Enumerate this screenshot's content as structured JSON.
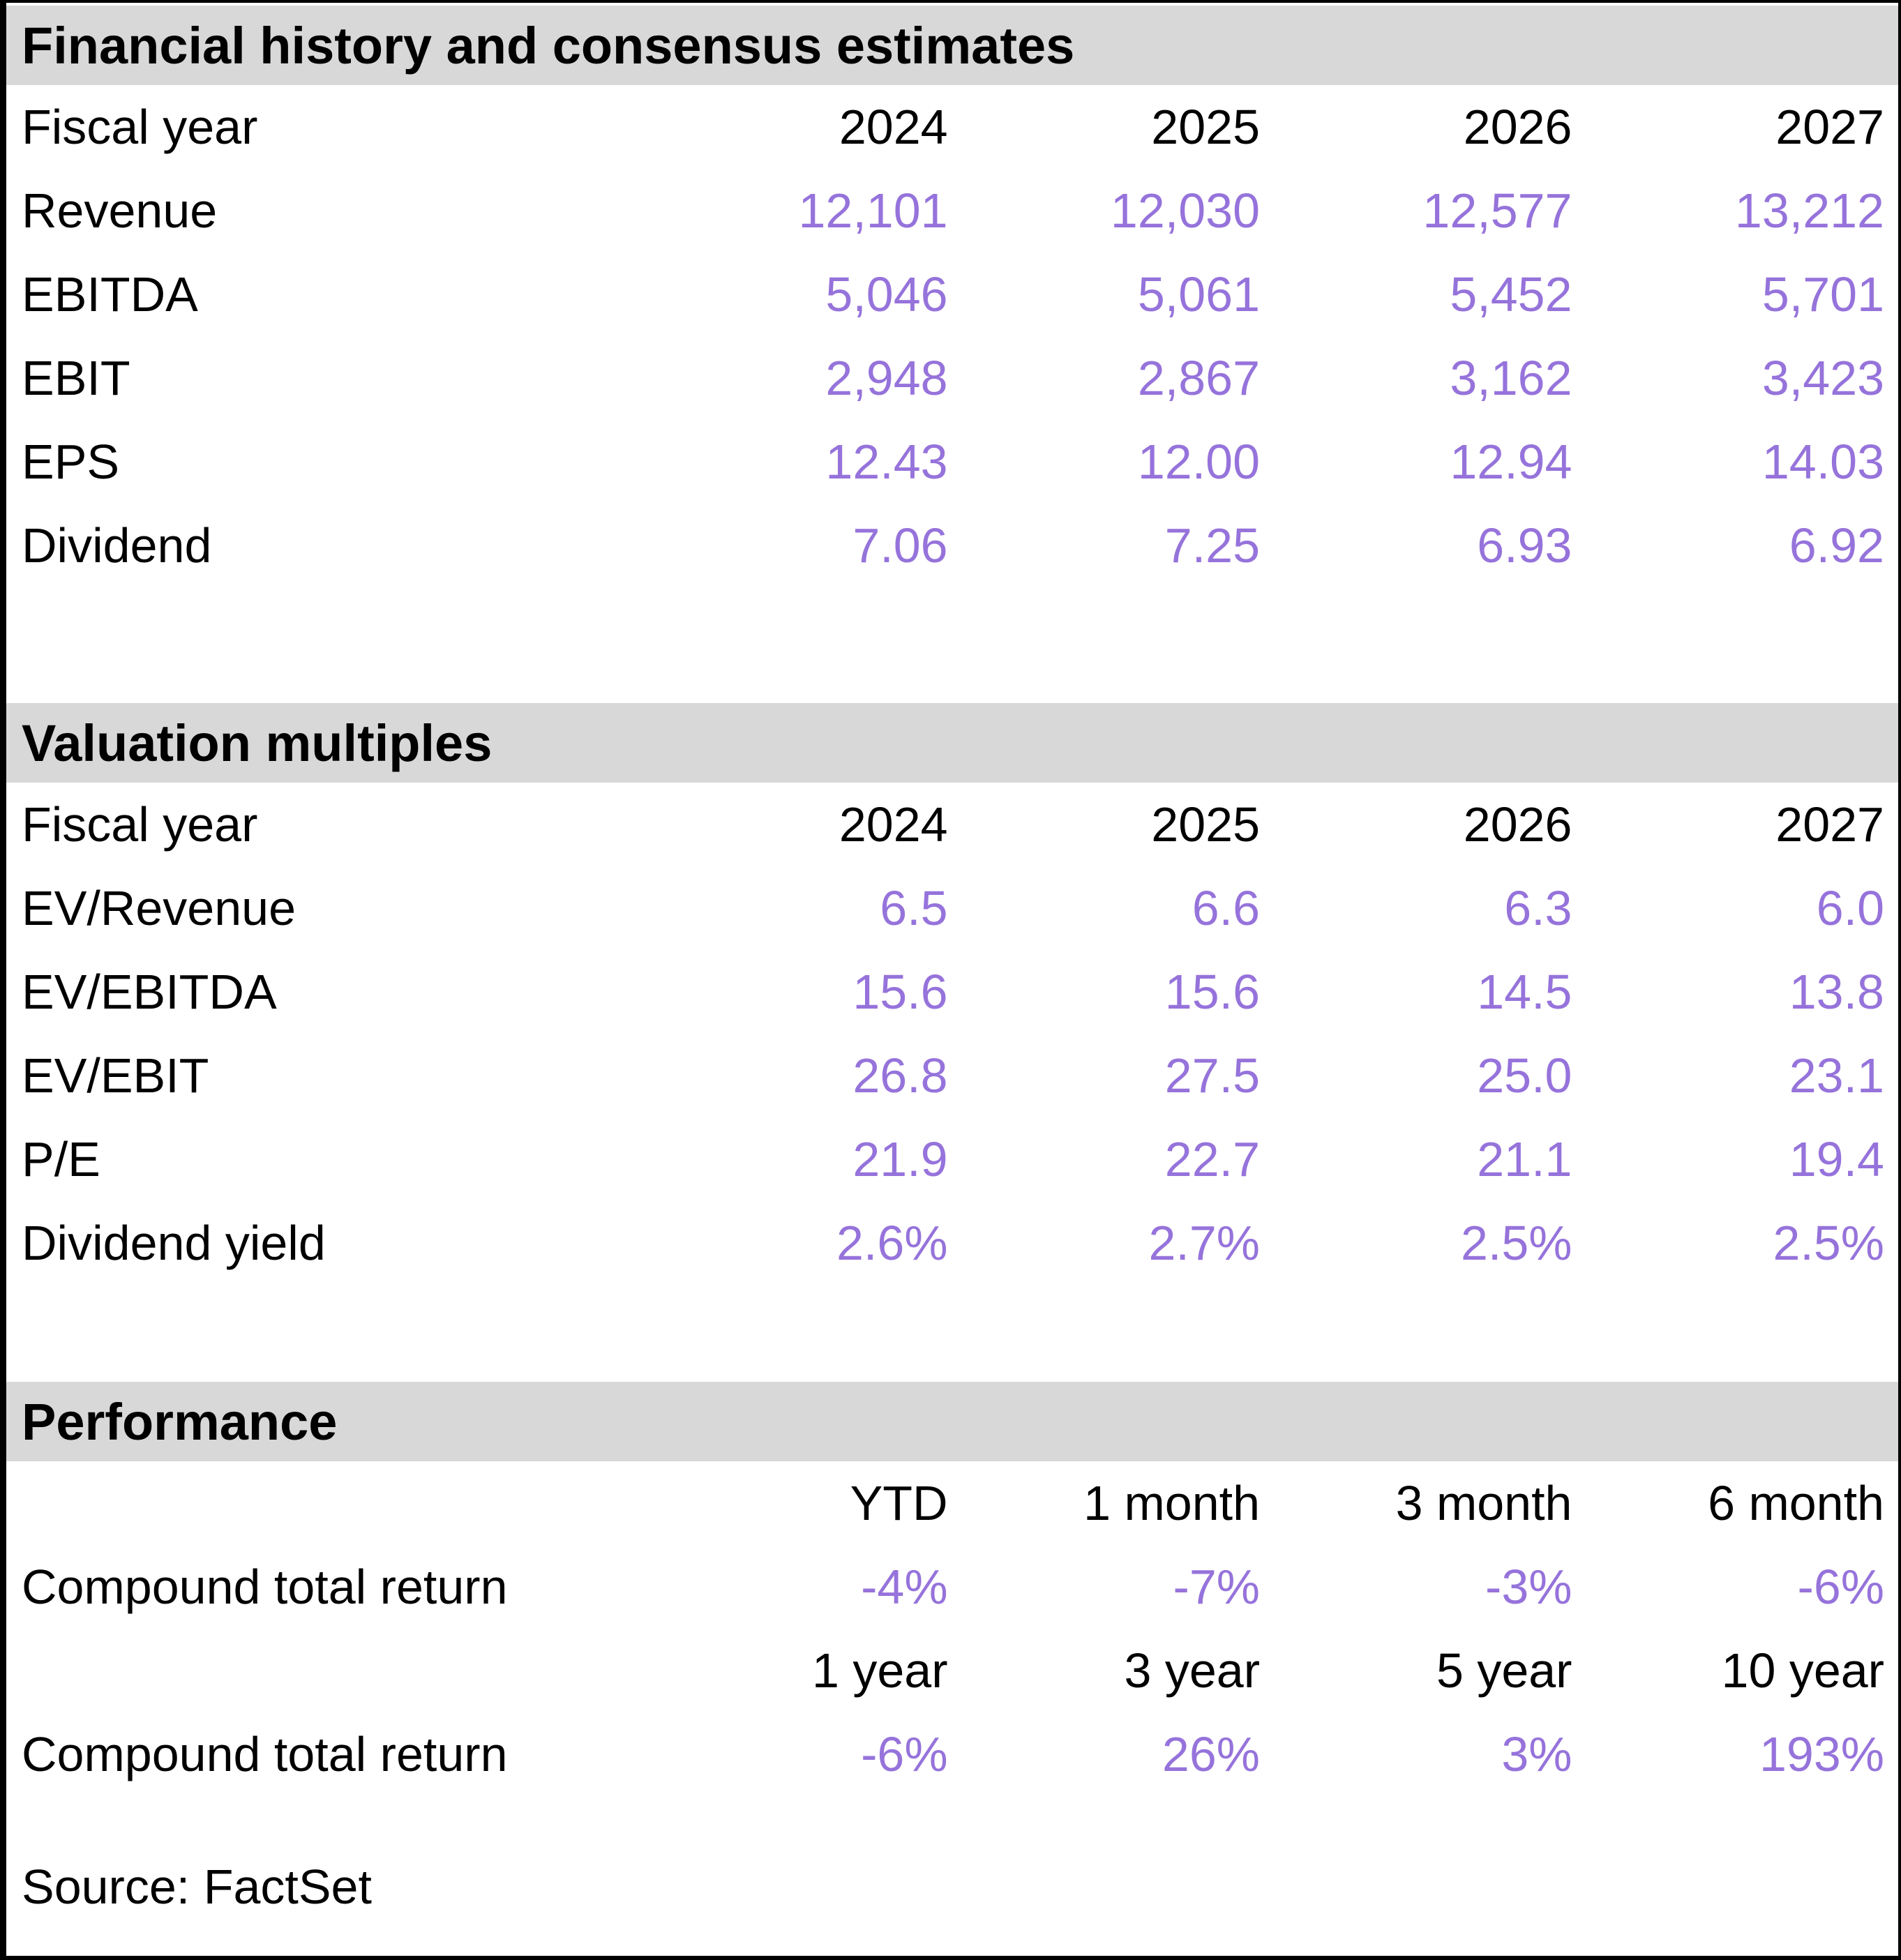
{
  "colors": {
    "accent_purple": "#9673DB",
    "section_header_bg": "#D8D8D8",
    "border_black": "#000000",
    "background": "#FFFFFF"
  },
  "sections": [
    {
      "title": "Financial history and consensus estimates",
      "header_label": "Fiscal year",
      "columns": [
        "2024",
        "2025",
        "2026",
        "2027"
      ],
      "rows": [
        {
          "label": "Revenue",
          "values": [
            "12,101",
            "12,030",
            "12,577",
            "13,212"
          ]
        },
        {
          "label": "EBITDA",
          "values": [
            "5,046",
            "5,061",
            "5,452",
            "5,701"
          ]
        },
        {
          "label": "EBIT",
          "values": [
            "2,948",
            "2,867",
            "3,162",
            "3,423"
          ]
        },
        {
          "label": "EPS",
          "values": [
            "12.43",
            "12.00",
            "12.94",
            "14.03"
          ]
        },
        {
          "label": "Dividend",
          "values": [
            "7.06",
            "7.25",
            "6.93",
            "6.92"
          ]
        }
      ]
    },
    {
      "title": "Valuation multiples",
      "header_label": "Fiscal year",
      "columns": [
        "2024",
        "2025",
        "2026",
        "2027"
      ],
      "rows": [
        {
          "label": "EV/Revenue",
          "values": [
            "6.5",
            "6.6",
            "6.3",
            "6.0"
          ]
        },
        {
          "label": "EV/EBITDA",
          "values": [
            "15.6",
            "15.6",
            "14.5",
            "13.8"
          ]
        },
        {
          "label": "EV/EBIT",
          "values": [
            "26.8",
            "27.5",
            "25.0",
            "23.1"
          ]
        },
        {
          "label": "P/E",
          "values": [
            "21.9",
            "22.7",
            "21.1",
            "19.4"
          ]
        },
        {
          "label": "Dividend yield",
          "values": [
            "2.6%",
            "2.7%",
            "2.5%",
            "2.5%"
          ]
        }
      ]
    },
    {
      "title": "Performance",
      "groups": [
        {
          "columns": [
            "YTD",
            "1 month",
            "3 month",
            "6 month"
          ],
          "row": {
            "label": "Compound total return",
            "values": [
              "-4%",
              "-7%",
              "-3%",
              "-6%"
            ]
          }
        },
        {
          "columns": [
            "1 year",
            "3 year",
            "5 year",
            "10 year"
          ],
          "row": {
            "label": "Compound total return",
            "values": [
              "-6%",
              "26%",
              "3%",
              "193%"
            ]
          }
        }
      ]
    }
  ],
  "source_note": "Source: FactSet",
  "chart_data": [
    {
      "type": "table",
      "title": "Financial history and consensus estimates",
      "columns": [
        "Fiscal year",
        "2024",
        "2025",
        "2026",
        "2027"
      ],
      "rows": [
        [
          "Revenue",
          12101,
          12030,
          12577,
          13212
        ],
        [
          "EBITDA",
          5046,
          5061,
          5452,
          5701
        ],
        [
          "EBIT",
          2948,
          2867,
          3162,
          3423
        ],
        [
          "EPS",
          12.43,
          12.0,
          12.94,
          14.03
        ],
        [
          "Dividend",
          7.06,
          7.25,
          6.93,
          6.92
        ]
      ]
    },
    {
      "type": "table",
      "title": "Valuation multiples",
      "columns": [
        "Fiscal year",
        "2024",
        "2025",
        "2026",
        "2027"
      ],
      "rows": [
        [
          "EV/Revenue",
          6.5,
          6.6,
          6.3,
          6.0
        ],
        [
          "EV/EBITDA",
          15.6,
          15.6,
          14.5,
          13.8
        ],
        [
          "EV/EBIT",
          26.8,
          27.5,
          25.0,
          23.1
        ],
        [
          "P/E",
          21.9,
          22.7,
          21.1,
          19.4
        ],
        [
          "Dividend yield",
          "2.6%",
          "2.7%",
          "2.5%",
          "2.5%"
        ]
      ]
    },
    {
      "type": "table",
      "title": "Performance",
      "columns": [
        "",
        "YTD",
        "1 month",
        "3 month",
        "6 month"
      ],
      "rows": [
        [
          "Compound total return",
          "-4%",
          "-7%",
          "-3%",
          "-6%"
        ]
      ],
      "columns_2": [
        "",
        "1 year",
        "3 year",
        "5 year",
        "10 year"
      ],
      "rows_2": [
        [
          "Compound total return",
          "-6%",
          "26%",
          "3%",
          "193%"
        ]
      ],
      "source": "Source: FactSet"
    }
  ]
}
